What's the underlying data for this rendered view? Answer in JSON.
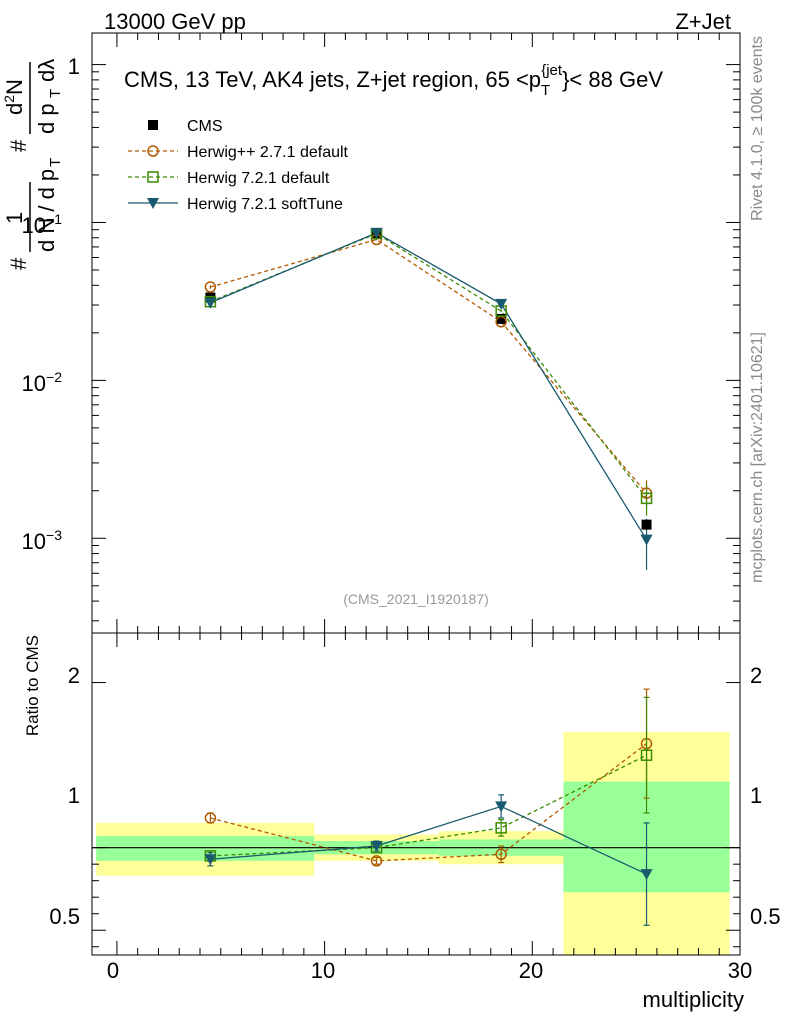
{
  "header": {
    "left": "13000 GeV pp",
    "right": "Z+Jet"
  },
  "chart_data": {
    "type": "line",
    "title": "CMS, 13 TeV, AK4 jets, Z+jet region, 65 <p_T^{jet}< 88 GeV",
    "title_parts": {
      "main": "CMS, 13 TeV, AK4 jets, Z+jet region, 65 <p",
      "sub": "T",
      "sup": "{jet",
      "tail": "}< 88 GeV"
    },
    "xlabel": "multiplicity",
    "ylabel_main": "1/dN/dp_T  d^2N/dp_T dλ",
    "ylabel_ratio": "Ratio to CMS",
    "analysis_id": "(CMS_2021_I1920187)",
    "side_label_top": "Rivet 4.1.0, ≥ 100k events",
    "side_label_bottom": "mcplots.cern.ch [arXiv:2401.10621]",
    "xlim": [
      -1.2,
      30
    ],
    "ylim_main_log10": [
      -3.6,
      0.2
    ],
    "ylim_ratio": [
      0.35,
      2.3
    ],
    "x_ticks": [
      "0",
      "10",
      "20",
      "30"
    ],
    "main_ticks": [
      "1",
      "10^-1",
      "10^-2",
      "10^-3"
    ],
    "ratio_ticks": [
      "0.5",
      "1",
      "2"
    ],
    "data": {
      "name": "CMS",
      "x": [
        4.5,
        12.5,
        18.5,
        25.5
      ],
      "values": [
        0.0335,
        0.085,
        0.0245,
        0.00122
      ],
      "bins": [
        [
          -1,
          9.5
        ],
        [
          9.5,
          15.5
        ],
        [
          15.5,
          21.5
        ],
        [
          21.5,
          29.5
        ]
      ],
      "ratio_band_green": [
        [
          0.92,
          1.07
        ],
        [
          0.96,
          1.04
        ],
        [
          0.95,
          1.05
        ],
        [
          0.73,
          1.4
        ]
      ],
      "ratio_band_yellow": [
        [
          0.83,
          1.15
        ],
        [
          0.92,
          1.08
        ],
        [
          0.9,
          1.1
        ],
        [
          0.35,
          1.7
        ]
      ]
    },
    "series": [
      {
        "name": "Herwig++ 2.7.1 default",
        "color": "#b05a00",
        "marker": "circle",
        "dash": "dashed",
        "x": [
          4.5,
          12.5,
          18.5,
          25.5
        ],
        "values": [
          0.039,
          0.078,
          0.0235,
          0.00193
        ],
        "errors": [
          0.001,
          0.001,
          0.0005,
          0.0004
        ],
        "ratio": [
          1.18,
          0.92,
          0.96,
          1.63
        ],
        "ratio_err": [
          0.03,
          0.02,
          0.05,
          0.33
        ]
      },
      {
        "name": "Herwig 7.2.1 default",
        "color": "#3b8a00",
        "marker": "square",
        "dash": "dashed",
        "x": [
          4.5,
          12.5,
          18.5,
          25.5
        ],
        "values": [
          0.0315,
          0.085,
          0.0275,
          0.00179
        ],
        "errors": [
          0.001,
          0.001,
          0.0005,
          0.0004
        ],
        "ratio": [
          0.95,
          1.0,
          1.12,
          1.56
        ],
        "ratio_err": [
          0.03,
          0.02,
          0.05,
          0.35
        ]
      },
      {
        "name": "Herwig 7.2.1 softTune",
        "color": "#1a5a6e",
        "marker": "triangle-down",
        "dash": "solid",
        "x": [
          4.5,
          12.5,
          18.5,
          25.5
        ],
        "values": [
          0.031,
          0.086,
          0.0305,
          0.00098
        ],
        "errors": [
          0.001,
          0.001,
          0.0008,
          0.00035
        ],
        "ratio": [
          0.93,
          1.01,
          1.25,
          0.84
        ],
        "ratio_err": [
          0.04,
          0.03,
          0.07,
          0.31
        ]
      }
    ],
    "colors": {
      "green_band": "#99ff99",
      "yellow_band": "#ffff99",
      "axis": "#000000",
      "grey_text": "#888888"
    }
  }
}
